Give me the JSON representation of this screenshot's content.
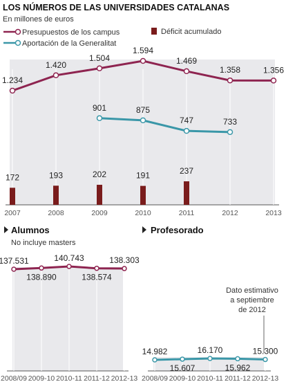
{
  "chart_data": [
    {
      "type": "line",
      "title": "LOS NÚMEROS DE LAS UNIVERSIDADES CATALANAS",
      "subtitle": "En millones de euros",
      "categories": [
        "2007",
        "2008",
        "2009",
        "2010",
        "2011",
        "2012",
        "2013"
      ],
      "series": [
        {
          "name": "Presupuestos de los campus",
          "type": "line",
          "color": "#8e2450",
          "values": [
            1234,
            1420,
            1504,
            1594,
            1469,
            1358,
            1356
          ],
          "labels": [
            "1.234",
            "1.420",
            "1.504",
            "1.594",
            "1.469",
            "1.358",
            "1.356"
          ]
        },
        {
          "name": "Aportación de la Generalitat",
          "type": "line",
          "color": "#3a97a8",
          "values": [
            null,
            null,
            901,
            875,
            747,
            733,
            null
          ],
          "labels": [
            null,
            null,
            "901",
            "875",
            "747",
            "733",
            null
          ]
        },
        {
          "name": "Déficit acumulado",
          "type": "bar",
          "color": "#7a1c1c",
          "values": [
            172,
            193,
            202,
            191,
            237,
            null,
            null
          ],
          "labels": [
            "172",
            "193",
            "202",
            "191",
            "237",
            null,
            null
          ]
        }
      ]
    },
    {
      "type": "line",
      "title": "Alumnos",
      "subtitle": "No incluye masters",
      "categories": [
        "2008/09",
        "2009-10",
        "2010-11",
        "2011-12",
        "2012-13"
      ],
      "series": [
        {
          "color": "#8e2450",
          "values": [
            137531,
            138890,
            140743,
            138574,
            138303
          ],
          "labels": [
            "137.531",
            "138.890",
            "140.743",
            "138.574",
            "138.303"
          ]
        }
      ]
    },
    {
      "type": "line",
      "title": "Profesorado",
      "categories": [
        "2008/09",
        "2009-10",
        "2010-11",
        "2011-12",
        "2012-13"
      ],
      "annotation": [
        "Dato estimativo",
        "a septiembre",
        "de 2012"
      ],
      "series": [
        {
          "color": "#3a97a8",
          "values": [
            14982,
            15607,
            16170,
            15962,
            15300
          ],
          "labels": [
            "14.982",
            "15.607",
            "16.170",
            "15.962",
            "15.300"
          ]
        }
      ]
    }
  ]
}
